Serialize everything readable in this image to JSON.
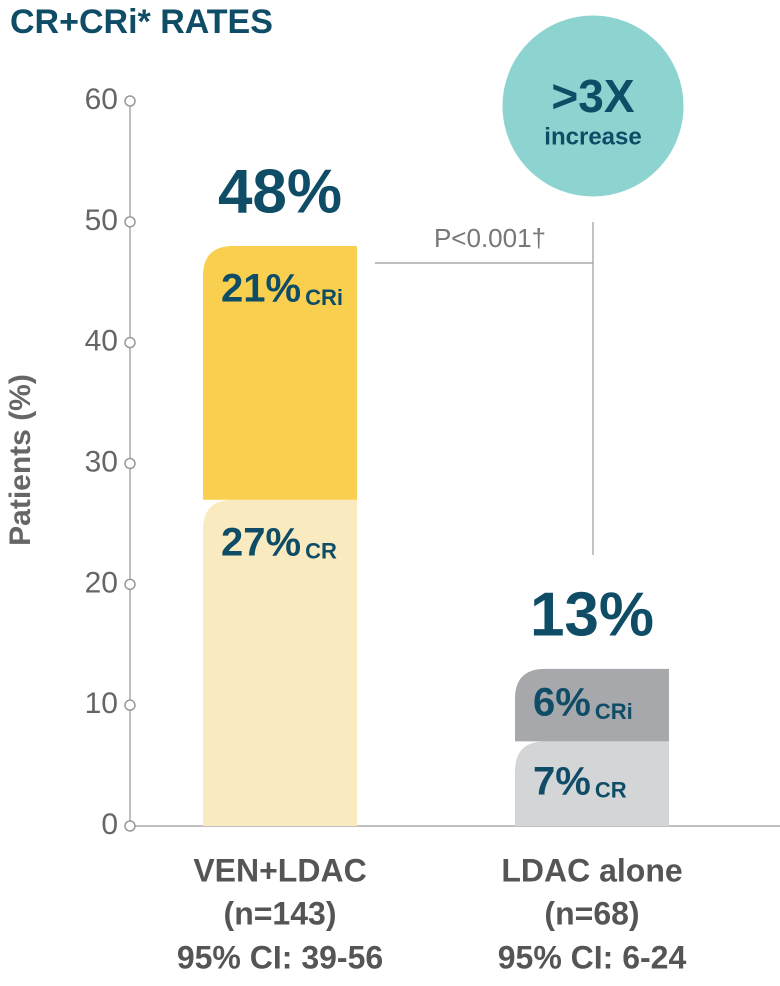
{
  "chart_data": {
    "type": "stacked-bar",
    "title": "CR+CRi* RATES",
    "y_label": "Patients (%)",
    "categories": [
      "VEN+LDAC",
      "LDAC alone"
    ],
    "category_n": [
      "(n=143)",
      "(n=68)"
    ],
    "category_ci": [
      "95% CI: 39-56",
      "95% CI: 6-24"
    ],
    "series": [
      {
        "name": "CR",
        "colors": [
          "#f9ebbf",
          "#d4d5d7"
        ],
        "values": [
          27,
          7
        ],
        "value_labels": [
          "27%",
          "7%"
        ]
      },
      {
        "name": "CRi",
        "colors": [
          "#f8cf4f",
          "#a7a8ab"
        ],
        "values": [
          21,
          6
        ],
        "value_labels": [
          "21%",
          "6%"
        ]
      }
    ],
    "totals": [
      48,
      13
    ],
    "total_labels": [
      "48%",
      "13%"
    ],
    "p_value": "P<0.001†",
    "badge": {
      "headline": ">3X",
      "text": "increase",
      "color": "#8dd3cf"
    },
    "ylim": [
      0,
      60
    ],
    "yticks": [
      0,
      10,
      20,
      30,
      40,
      50,
      60
    ]
  }
}
